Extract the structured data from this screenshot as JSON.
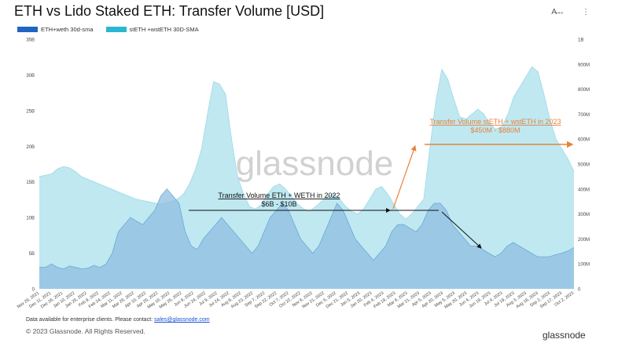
{
  "title": "ETH vs Lido Staked ETH: Transfer Volume [USD]",
  "toolbar": {
    "translate_icon": "translate-icon",
    "more_icon": "more-vert-icon"
  },
  "watermark": "glassnode",
  "footer": {
    "note_prefix": "Data available for enterprise clients. Please contact:",
    "contact_email": "sales@glassnode.com",
    "copyright": "© 2023 Glassnode. All Rights Reserved.",
    "brand": "glassnode"
  },
  "colors": {
    "eth_fill": "#8fbfe0",
    "eth_pre_fill": "#c8d6ef",
    "steth_fill": "#b8e6ef",
    "eth_legend": "#1f66c4",
    "steth_legend": "#2ab7d1",
    "orange": "#e8823c",
    "black": "#111111"
  },
  "chart_data": {
    "type": "area",
    "title": "ETH vs Lido Staked ETH: Transfer Volume [USD]",
    "legend_position": "top-left",
    "grid": false,
    "x_ticks": [
      "Nov 26, 2021",
      "Dec 11, 2021",
      "Dec 26, 2021",
      "Jan 10, 2022",
      "Jan 25, 2022",
      "Feb 9, 2022",
      "Feb 24, 2022",
      "Mar 11, 2022",
      "Mar 26, 2022",
      "Apr 10, 2022",
      "Apr 25, 2022",
      "May 10, 2022",
      "May 25, 2022",
      "Jun 9, 2022",
      "Jun 24, 2022",
      "Jul 9, 2022",
      "Jul 24, 2022",
      "Aug 8, 2022",
      "Aug 23, 2022",
      "Sep 7, 2022",
      "Sep 22, 2022",
      "Oct 7, 2022",
      "Oct 22, 2022",
      "Nov 6, 2022",
      "Nov 21, 2022",
      "Dec 6, 2022",
      "Dec 21, 2022",
      "Jan 5, 2023",
      "Jan 20, 2023",
      "Feb 4, 2023",
      "Feb 19, 2023",
      "Mar 6, 2023",
      "Mar 21, 2023",
      "Apr 5, 2023",
      "Apr 20, 2023",
      "May 5, 2023",
      "May 20, 2023",
      "Jun 4, 2023",
      "Jun 19, 2023",
      "Jul 4, 2023",
      "Jul 19, 2023",
      "Aug 3, 2023",
      "Aug 18, 2023",
      "Sep 2, 2023",
      "Sep 17, 2023",
      "Oct 2, 2023"
    ],
    "y_left": {
      "label": "",
      "ticks": [
        "0",
        "5B",
        "10B",
        "15B",
        "20B",
        "25B",
        "30B",
        "35B"
      ],
      "ylim": [
        0,
        35
      ]
    },
    "y_right": {
      "label": "",
      "ticks": [
        "0",
        "100M",
        "200M",
        "300M",
        "400M",
        "500M",
        "600M",
        "700M",
        "800M",
        "900M",
        "1B"
      ],
      "ylim": [
        0,
        1000
      ]
    },
    "series": [
      {
        "name": "ETH+weth 30d-sma",
        "axis": "left",
        "unit": "B USD",
        "values": [
          3.0,
          3.0,
          3.5,
          3.0,
          2.8,
          3.2,
          3.0,
          2.8,
          2.9,
          3.3,
          3.0,
          3.5,
          5,
          8,
          9,
          10,
          9.5,
          9,
          10,
          11,
          13,
          14,
          13,
          12,
          8,
          6,
          5.5,
          7,
          8,
          9,
          10,
          9,
          8,
          7,
          6,
          5,
          6,
          8,
          10,
          11,
          12,
          11,
          9,
          7,
          6,
          5,
          6,
          8,
          10,
          12,
          11,
          9,
          7,
          6,
          5,
          4,
          5,
          6,
          8,
          9,
          9,
          8.5,
          8,
          9,
          11,
          12,
          12,
          11,
          9,
          8,
          7,
          6,
          6,
          5.5,
          5,
          4.5,
          5,
          6,
          6.5,
          6,
          5.5,
          5,
          4.5,
          4.5,
          4.5,
          4.8,
          5,
          5.3,
          5.8
        ]
      },
      {
        "name": "stETH +wstETH 30D-SMA",
        "axis": "right",
        "unit": "M USD",
        "values": [
          450,
          455,
          460,
          480,
          490,
          485,
          470,
          450,
          440,
          430,
          420,
          410,
          400,
          390,
          380,
          370,
          360,
          355,
          350,
          345,
          340,
          345,
          350,
          360,
          380,
          420,
          480,
          560,
          700,
          830,
          820,
          780,
          600,
          450,
          380,
          330,
          320,
          340,
          380,
          410,
          420,
          400,
          370,
          340,
          320,
          310,
          330,
          350,
          370,
          380,
          360,
          330,
          310,
          300,
          320,
          360,
          400,
          410,
          380,
          340,
          300,
          280,
          300,
          330,
          360,
          560,
          750,
          880,
          840,
          760,
          690,
          680,
          700,
          720,
          700,
          660,
          640,
          650,
          700,
          770,
          810,
          850,
          890,
          870,
          780,
          680,
          600,
          560,
          520,
          470
        ]
      }
    ],
    "annotations": [
      {
        "text": "Transfer Volume ETH + WETH in 2022",
        "range": "$6B - $10B"
      },
      {
        "text": "Transfer Volume stETH + wstETH in 2023",
        "range": "$450M - $880M"
      }
    ]
  }
}
